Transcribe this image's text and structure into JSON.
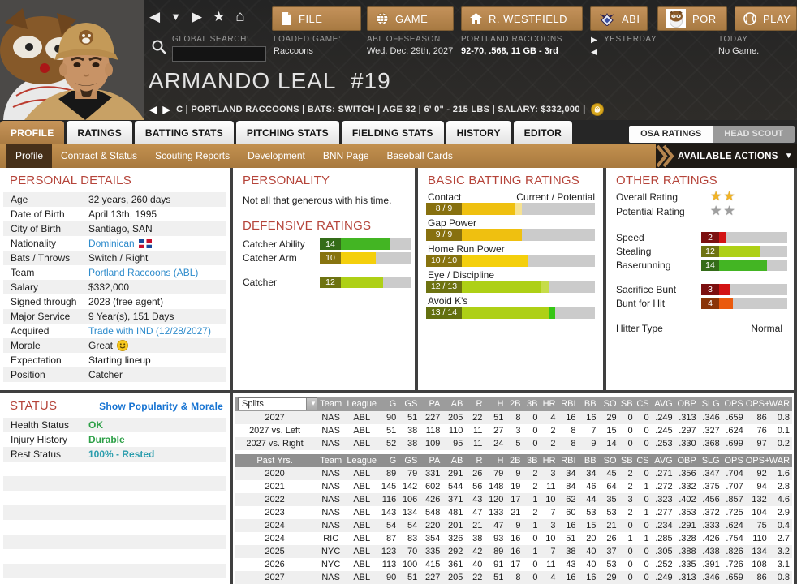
{
  "colors": {
    "tan": "#b5854e",
    "heading_red": "#b5443a",
    "link_blue": "#2f8ccc",
    "green": "#2da047",
    "teal": "#2b9dad",
    "bar_track": "#cbcbcb"
  },
  "top_nav": {
    "nav_icons": [
      "back",
      "dropdown",
      "forward",
      "favorite",
      "home"
    ],
    "buttons": [
      {
        "id": "file",
        "label": "FILE"
      },
      {
        "id": "game",
        "label": "GAME"
      },
      {
        "id": "manager",
        "label": "R. WESTFIELD"
      },
      {
        "id": "abi",
        "label": "ABI"
      },
      {
        "id": "por",
        "label": "POR"
      },
      {
        "id": "play",
        "label": "PLAY"
      }
    ],
    "global_search_label": "GLOBAL SEARCH:",
    "loaded_game_label": "LOADED GAME:",
    "loaded_game_value": "Raccoons",
    "phase_line1": "ABL OFFSEASON",
    "phase_line2": "Wed. Dec. 29th, 2027",
    "team_line1": "PORTLAND RACCOONS",
    "team_line2": "92-70, .568, 11 GB - 3rd",
    "yesterday_label": "YESTERDAY",
    "today_label": "TODAY",
    "today_value": "No Game."
  },
  "player": {
    "name": "ARMANDO LEAL",
    "number": "#19",
    "info": "C | PORTLAND RACCOONS  |  BATS: SWITCH  |  AGE 32  |  6' 0\" - 215 LBS  |  SALARY: $332,000  |"
  },
  "tabs": [
    "PROFILE",
    "RATINGS",
    "BATTING STATS",
    "PITCHING STATS",
    "FIELDING STATS",
    "HISTORY",
    "EDITOR"
  ],
  "active_tab": 0,
  "scout_toggle": {
    "left": "OSA RATINGS",
    "right": "HEAD SCOUT"
  },
  "subtabs": [
    "Profile",
    "Contract & Status",
    "Scouting Reports",
    "Development",
    "BNN Page",
    "Baseball Cards"
  ],
  "active_subtab": 0,
  "available_actions_label": "AVAILABLE ACTIONS",
  "personal_details": {
    "heading": "PERSONAL DETAILS",
    "rows": [
      {
        "label": "Age",
        "value": "32 years, 260 days"
      },
      {
        "label": "Date of Birth",
        "value": "April 13th, 1995"
      },
      {
        "label": "City of Birth",
        "value": "Santiago, SAN"
      },
      {
        "label": "Nationality",
        "value": "Dominican",
        "type": "link-flag"
      },
      {
        "label": "Bats / Throws",
        "value": "Switch / Right"
      },
      {
        "label": "Team",
        "value": "Portland Raccoons (ABL)",
        "type": "link"
      },
      {
        "label": "Salary",
        "value": "$332,000"
      },
      {
        "label": "Signed through",
        "value": "2028 (free agent)"
      },
      {
        "label": "Major Service",
        "value": "9 Year(s), 151 Days"
      },
      {
        "label": "Acquired",
        "value": "Trade with IND (12/28/2027)",
        "type": "link"
      },
      {
        "label": "Morale",
        "value": "Great",
        "type": "emoji"
      },
      {
        "label": "Expectation",
        "value": "Starting lineup"
      },
      {
        "label": "Position",
        "value": "Catcher"
      }
    ]
  },
  "status_panel": {
    "heading": "STATUS",
    "link": "Show Popularity & Morale",
    "rows": [
      {
        "label": "Health Status",
        "value": "OK",
        "style": "txt-green"
      },
      {
        "label": "Injury History",
        "value": "Durable",
        "style": "txt-green"
      },
      {
        "label": "Rest Status",
        "value": "100% - Rested",
        "style": "txt-teal"
      }
    ],
    "empty_rows": 10
  },
  "personality": {
    "heading": "PERSONALITY",
    "text": "Not all that generous with his time."
  },
  "defensive_ratings": {
    "heading": "DEFENSIVE RATINGS",
    "scale_max": 20,
    "rows": [
      {
        "label": "Catcher Ability",
        "value": 14,
        "fill": "#43b523",
        "box": "#346c19",
        "gap_after": false
      },
      {
        "label": "Catcher Arm",
        "value": 10,
        "fill": "#f4cf0c",
        "box": "#87730f",
        "gap_after": true
      },
      {
        "label": "Catcher",
        "value": 12,
        "fill": "#aed016",
        "box": "#6e7311",
        "gap_after": false
      }
    ]
  },
  "batting_ratings": {
    "heading": "BASIC BATTING RATINGS",
    "legend": "Current / Potential",
    "scale_max": 20,
    "rows": [
      {
        "label": "Contact",
        "current": 8,
        "potential": 9,
        "fill": "#efc010",
        "pot_fill": "#f6e292",
        "box": "#87700f"
      },
      {
        "label": "Gap Power",
        "current": 9,
        "potential": 9,
        "fill": "#efc010",
        "pot_fill": "#f6e292",
        "box": "#87700f"
      },
      {
        "label": "Home Run Power",
        "current": 10,
        "potential": 10,
        "fill": "#f4cf0c",
        "pot_fill": "#f6e292",
        "box": "#87730f"
      },
      {
        "label": "Eye / Discipline",
        "current": 12,
        "potential": 13,
        "fill": "#aed016",
        "pot_fill": "#c6dc49",
        "box": "#6e7311"
      },
      {
        "label": "Avoid K's",
        "current": 13,
        "potential": 14,
        "fill": "#aed016",
        "pot_fill": "#35c615",
        "box": "#63700f"
      }
    ]
  },
  "other_ratings": {
    "heading": "OTHER RATINGS",
    "overall_label": "Overall Rating",
    "overall_stars": 2,
    "potential_label": "Potential Rating",
    "potential_stars": 2,
    "stars_max": 5,
    "scale_max": 20,
    "bars": [
      {
        "label": "Speed",
        "value": 2,
        "fill": "#d31414",
        "box": "#7c1010",
        "group": 1
      },
      {
        "label": "Stealing",
        "value": 12,
        "fill": "#aed016",
        "box": "#6e7311",
        "group": 1
      },
      {
        "label": "Baserunning",
        "value": 14,
        "fill": "#43b523",
        "box": "#346c19",
        "group": 1
      },
      {
        "label": "Sacrifice Bunt",
        "value": 3,
        "fill": "#d31414",
        "box": "#7c1010",
        "group": 2
      },
      {
        "label": "Bunt for Hit",
        "value": 4,
        "fill": "#ea5a0d",
        "box": "#8a3408",
        "group": 2
      }
    ],
    "hitter_type_label": "Hitter Type",
    "hitter_type_value": "Normal"
  },
  "stats_table": {
    "splits_label": "Splits",
    "columns": [
      "Team",
      "League",
      "G",
      "GS",
      "PA",
      "AB",
      "R",
      "H",
      "2B",
      "3B",
      "HR",
      "RBI",
      "BB",
      "SO",
      "SB",
      "CS",
      "AVG",
      "OBP",
      "SLG",
      "OPS",
      "OPS+",
      "WAR"
    ],
    "splits_rows": [
      {
        "label": "2027",
        "cells": [
          "NAS",
          "ABL",
          "90",
          "51",
          "227",
          "205",
          "22",
          "51",
          "8",
          "0",
          "4",
          "16",
          "16",
          "29",
          "0",
          "0",
          ".249",
          ".313",
          ".346",
          ".659",
          "86",
          "0.8"
        ]
      },
      {
        "label": "2027 vs. Left",
        "cells": [
          "NAS",
          "ABL",
          "51",
          "38",
          "118",
          "110",
          "11",
          "27",
          "3",
          "0",
          "2",
          "8",
          "7",
          "15",
          "0",
          "0",
          ".245",
          ".297",
          ".327",
          ".624",
          "76",
          "0.1"
        ]
      },
      {
        "label": "2027 vs. Right",
        "cells": [
          "NAS",
          "ABL",
          "52",
          "38",
          "109",
          "95",
          "11",
          "24",
          "5",
          "0",
          "2",
          "8",
          "9",
          "14",
          "0",
          "0",
          ".253",
          ".330",
          ".368",
          ".699",
          "97",
          "0.2"
        ]
      }
    ],
    "past_label": "Past Yrs.",
    "past_rows": [
      {
        "label": "2020",
        "cells": [
          "NAS",
          "ABL",
          "89",
          "79",
          "331",
          "291",
          "26",
          "79",
          "9",
          "2",
          "3",
          "34",
          "34",
          "45",
          "2",
          "0",
          ".271",
          ".356",
          ".347",
          ".704",
          "92",
          "1.6"
        ]
      },
      {
        "label": "2021",
        "cells": [
          "NAS",
          "ABL",
          "145",
          "142",
          "602",
          "544",
          "56",
          "148",
          "19",
          "2",
          "11",
          "84",
          "46",
          "64",
          "2",
          "1",
          ".272",
          ".332",
          ".375",
          ".707",
          "94",
          "2.8"
        ]
      },
      {
        "label": "2022",
        "cells": [
          "NAS",
          "ABL",
          "116",
          "106",
          "426",
          "371",
          "43",
          "120",
          "17",
          "1",
          "10",
          "62",
          "44",
          "35",
          "3",
          "0",
          ".323",
          ".402",
          ".456",
          ".857",
          "132",
          "4.6"
        ]
      },
      {
        "label": "2023",
        "cells": [
          "NAS",
          "ABL",
          "143",
          "134",
          "548",
          "481",
          "47",
          "133",
          "21",
          "2",
          "7",
          "60",
          "53",
          "53",
          "2",
          "1",
          ".277",
          ".353",
          ".372",
          ".725",
          "104",
          "2.9"
        ]
      },
      {
        "label": "2024",
        "cells": [
          "NAS",
          "ABL",
          "54",
          "54",
          "220",
          "201",
          "21",
          "47",
          "9",
          "1",
          "3",
          "16",
          "15",
          "21",
          "0",
          "0",
          ".234",
          ".291",
          ".333",
          ".624",
          "75",
          "0.4"
        ]
      },
      {
        "label": "2024",
        "cells": [
          "RIC",
          "ABL",
          "87",
          "83",
          "354",
          "326",
          "38",
          "93",
          "16",
          "0",
          "10",
          "51",
          "20",
          "26",
          "1",
          "1",
          ".285",
          ".328",
          ".426",
          ".754",
          "110",
          "2.7"
        ]
      },
      {
        "label": "2025",
        "cells": [
          "NYC",
          "ABL",
          "123",
          "70",
          "335",
          "292",
          "42",
          "89",
          "16",
          "1",
          "7",
          "38",
          "40",
          "37",
          "0",
          "0",
          ".305",
          ".388",
          ".438",
          ".826",
          "134",
          "3.2"
        ]
      },
      {
        "label": "2026",
        "cells": [
          "NYC",
          "ABL",
          "113",
          "100",
          "415",
          "361",
          "40",
          "91",
          "17",
          "0",
          "11",
          "43",
          "40",
          "53",
          "0",
          "0",
          ".252",
          ".335",
          ".391",
          ".726",
          "108",
          "3.1"
        ]
      },
      {
        "label": "2027",
        "cells": [
          "NAS",
          "ABL",
          "90",
          "51",
          "227",
          "205",
          "22",
          "51",
          "8",
          "0",
          "4",
          "16",
          "16",
          "29",
          "0",
          "0",
          ".249",
          ".313",
          ".346",
          ".659",
          "86",
          "0.8"
        ]
      }
    ]
  }
}
